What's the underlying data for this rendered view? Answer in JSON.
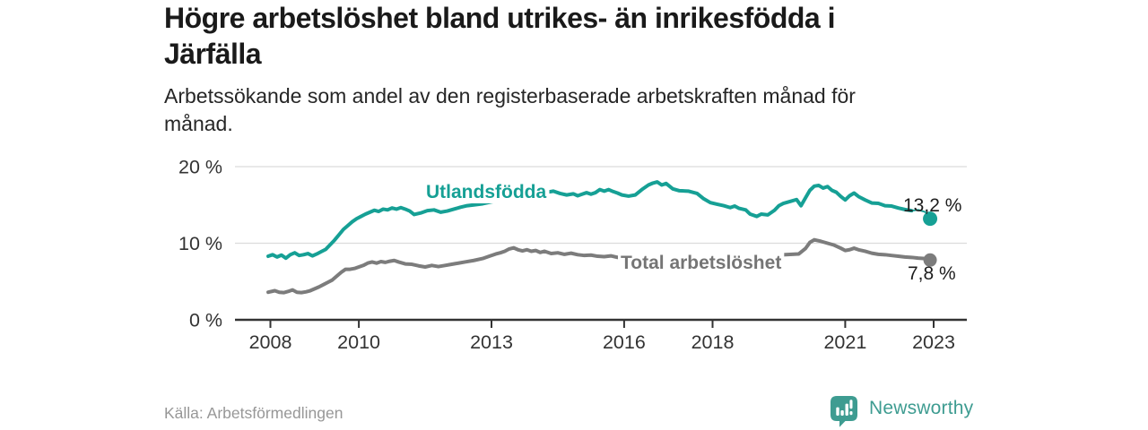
{
  "header": {
    "title_lines": [
      "Högre arbetslöshet bland utrikes- än inrikesfödda i",
      "Järfälla"
    ],
    "subtitle_lines": [
      "Arbetssökande som andel av den registerbaserade arbetskraften månad för",
      "månad."
    ]
  },
  "footer": {
    "source": "Källa: Arbetsförmedlingen",
    "brand": "Newsworthy",
    "logo_icon": "speech-bubble-bar-chart-icon"
  },
  "colors": {
    "accent_teal": "#16a095",
    "line_gray": "#7c7c7c",
    "label_gray": "#757575",
    "grid": "#dcdcdc",
    "axis": "#333333",
    "tick_text": "#333333",
    "value_text": "#1d1d1d",
    "brand_teal": "#3e9c91",
    "background": "#ffffff"
  },
  "chart_data": {
    "type": "line",
    "title": "Högre arbetslöshet bland utrikes- än inrikesfödda i Järfälla",
    "subtitle": "Arbetssökande som andel av den registerbaserade arbetskraften månad för månad.",
    "xlabel": "",
    "ylabel": "",
    "grid": "horizontal",
    "legend_position": "inline-labels",
    "ylim": [
      0,
      21.5
    ],
    "x_range": [
      2007.95,
      2023.2
    ],
    "x_axis": {
      "ticks": [
        {
          "year": 2008,
          "label": "2008"
        },
        {
          "year": 2010,
          "label": "2010"
        },
        {
          "year": 2013,
          "label": "2013"
        },
        {
          "year": 2016,
          "label": "2016"
        },
        {
          "year": 2018,
          "label": "2018"
        },
        {
          "year": 2021,
          "label": "2021"
        },
        {
          "year": 2023,
          "label": "2023"
        }
      ]
    },
    "y_axis": {
      "ticks": [
        {
          "value": 0,
          "label": "0 %"
        },
        {
          "value": 10,
          "label": "10 %"
        },
        {
          "value": 20,
          "label": "20 %"
        }
      ]
    },
    "series": [
      {
        "name": "Utlandsfödda",
        "color": "#16a095",
        "end_label": "13,2 %",
        "end_value": 13.2,
        "points": [
          [
            2007.95,
            8.3
          ],
          [
            2008.05,
            8.5
          ],
          [
            2008.15,
            8.2
          ],
          [
            2008.25,
            8.45
          ],
          [
            2008.35,
            8.05
          ],
          [
            2008.45,
            8.5
          ],
          [
            2008.55,
            8.75
          ],
          [
            2008.65,
            8.4
          ],
          [
            2008.75,
            8.5
          ],
          [
            2008.85,
            8.65
          ],
          [
            2008.95,
            8.35
          ],
          [
            2009.05,
            8.6
          ],
          [
            2009.15,
            8.9
          ],
          [
            2009.25,
            9.2
          ],
          [
            2009.35,
            9.8
          ],
          [
            2009.45,
            10.4
          ],
          [
            2009.55,
            11.1
          ],
          [
            2009.65,
            11.8
          ],
          [
            2009.75,
            12.3
          ],
          [
            2009.85,
            12.8
          ],
          [
            2009.95,
            13.2
          ],
          [
            2010.05,
            13.5
          ],
          [
            2010.15,
            13.8
          ],
          [
            2010.25,
            14.05
          ],
          [
            2010.35,
            14.3
          ],
          [
            2010.45,
            14.15
          ],
          [
            2010.55,
            14.45
          ],
          [
            2010.65,
            14.35
          ],
          [
            2010.75,
            14.6
          ],
          [
            2010.85,
            14.45
          ],
          [
            2010.95,
            14.65
          ],
          [
            2011.05,
            14.45
          ],
          [
            2011.15,
            14.2
          ],
          [
            2011.25,
            13.75
          ],
          [
            2011.4,
            13.95
          ],
          [
            2011.55,
            14.25
          ],
          [
            2011.7,
            14.35
          ],
          [
            2011.85,
            14.05
          ],
          [
            2012.0,
            14.2
          ],
          [
            2012.15,
            14.45
          ],
          [
            2012.3,
            14.7
          ],
          [
            2012.45,
            14.9
          ],
          [
            2012.6,
            15.0
          ],
          [
            2012.8,
            15.15
          ],
          [
            2013.0,
            15.4
          ],
          [
            2013.25,
            15.6
          ],
          [
            2013.5,
            15.85
          ],
          [
            2013.75,
            16.1
          ],
          [
            2014.0,
            16.4
          ],
          [
            2014.2,
            16.6
          ],
          [
            2014.4,
            16.8
          ],
          [
            2014.55,
            16.5
          ],
          [
            2014.7,
            16.3
          ],
          [
            2014.85,
            16.45
          ],
          [
            2014.95,
            16.2
          ],
          [
            2015.05,
            16.4
          ],
          [
            2015.15,
            16.6
          ],
          [
            2015.25,
            16.4
          ],
          [
            2015.35,
            16.6
          ],
          [
            2015.45,
            17.0
          ],
          [
            2015.55,
            16.8
          ],
          [
            2015.65,
            17.0
          ],
          [
            2015.75,
            16.75
          ],
          [
            2015.85,
            16.55
          ],
          [
            2015.95,
            16.3
          ],
          [
            2016.1,
            16.15
          ],
          [
            2016.25,
            16.3
          ],
          [
            2016.4,
            17.0
          ],
          [
            2016.55,
            17.6
          ],
          [
            2016.65,
            17.85
          ],
          [
            2016.75,
            18.0
          ],
          [
            2016.85,
            17.6
          ],
          [
            2016.95,
            17.8
          ],
          [
            2017.1,
            17.1
          ],
          [
            2017.25,
            16.85
          ],
          [
            2017.45,
            16.8
          ],
          [
            2017.65,
            16.5
          ],
          [
            2017.8,
            15.8
          ],
          [
            2017.95,
            15.3
          ],
          [
            2018.1,
            15.1
          ],
          [
            2018.25,
            14.9
          ],
          [
            2018.4,
            14.65
          ],
          [
            2018.5,
            14.85
          ],
          [
            2018.6,
            14.55
          ],
          [
            2018.75,
            14.35
          ],
          [
            2018.85,
            13.8
          ],
          [
            2019.0,
            13.5
          ],
          [
            2019.1,
            13.8
          ],
          [
            2019.25,
            13.7
          ],
          [
            2019.4,
            14.3
          ],
          [
            2019.5,
            14.9
          ],
          [
            2019.6,
            15.2
          ],
          [
            2019.75,
            15.45
          ],
          [
            2019.9,
            15.7
          ],
          [
            2020.0,
            14.9
          ],
          [
            2020.1,
            15.9
          ],
          [
            2020.2,
            16.9
          ],
          [
            2020.3,
            17.45
          ],
          [
            2020.4,
            17.55
          ],
          [
            2020.5,
            17.2
          ],
          [
            2020.6,
            17.4
          ],
          [
            2020.7,
            16.9
          ],
          [
            2020.8,
            16.65
          ],
          [
            2020.9,
            16.1
          ],
          [
            2021.0,
            15.65
          ],
          [
            2021.1,
            16.2
          ],
          [
            2021.2,
            16.55
          ],
          [
            2021.3,
            16.1
          ],
          [
            2021.45,
            15.65
          ],
          [
            2021.6,
            15.25
          ],
          [
            2021.75,
            15.2
          ],
          [
            2021.9,
            14.9
          ],
          [
            2022.05,
            14.85
          ],
          [
            2022.2,
            14.6
          ],
          [
            2022.35,
            14.4
          ],
          [
            2022.5,
            14.25
          ],
          [
            2022.65,
            14.35
          ],
          [
            2022.8,
            14.1
          ],
          [
            2022.92,
            13.6
          ]
        ]
      },
      {
        "name": "Total arbetslöshet",
        "color": "#7c7c7c",
        "end_label": "7,8 %",
        "end_value": 7.8,
        "points": [
          [
            2007.95,
            3.6
          ],
          [
            2008.1,
            3.8
          ],
          [
            2008.2,
            3.6
          ],
          [
            2008.3,
            3.55
          ],
          [
            2008.4,
            3.7
          ],
          [
            2008.5,
            3.9
          ],
          [
            2008.6,
            3.6
          ],
          [
            2008.7,
            3.55
          ],
          [
            2008.8,
            3.65
          ],
          [
            2008.9,
            3.8
          ],
          [
            2009.0,
            4.05
          ],
          [
            2009.1,
            4.3
          ],
          [
            2009.2,
            4.6
          ],
          [
            2009.3,
            4.9
          ],
          [
            2009.4,
            5.2
          ],
          [
            2009.5,
            5.7
          ],
          [
            2009.6,
            6.2
          ],
          [
            2009.7,
            6.6
          ],
          [
            2009.8,
            6.6
          ],
          [
            2009.9,
            6.7
          ],
          [
            2010.0,
            6.9
          ],
          [
            2010.1,
            7.1
          ],
          [
            2010.2,
            7.4
          ],
          [
            2010.3,
            7.55
          ],
          [
            2010.4,
            7.4
          ],
          [
            2010.5,
            7.6
          ],
          [
            2010.6,
            7.5
          ],
          [
            2010.7,
            7.65
          ],
          [
            2010.8,
            7.75
          ],
          [
            2010.9,
            7.55
          ],
          [
            2011.05,
            7.3
          ],
          [
            2011.2,
            7.25
          ],
          [
            2011.35,
            7.05
          ],
          [
            2011.5,
            6.9
          ],
          [
            2011.65,
            7.1
          ],
          [
            2011.8,
            6.95
          ],
          [
            2011.95,
            7.1
          ],
          [
            2012.1,
            7.25
          ],
          [
            2012.25,
            7.4
          ],
          [
            2012.4,
            7.55
          ],
          [
            2012.6,
            7.75
          ],
          [
            2012.8,
            8.0
          ],
          [
            2012.95,
            8.3
          ],
          [
            2013.1,
            8.6
          ],
          [
            2013.2,
            8.75
          ],
          [
            2013.3,
            8.95
          ],
          [
            2013.4,
            9.25
          ],
          [
            2013.5,
            9.4
          ],
          [
            2013.6,
            9.15
          ],
          [
            2013.7,
            9.0
          ],
          [
            2013.8,
            9.15
          ],
          [
            2013.9,
            8.95
          ],
          [
            2014.0,
            9.05
          ],
          [
            2014.1,
            8.8
          ],
          [
            2014.2,
            8.95
          ],
          [
            2014.35,
            8.65
          ],
          [
            2014.5,
            8.75
          ],
          [
            2014.65,
            8.55
          ],
          [
            2014.8,
            8.7
          ],
          [
            2014.95,
            8.5
          ],
          [
            2015.1,
            8.4
          ],
          [
            2015.25,
            8.45
          ],
          [
            2015.4,
            8.3
          ],
          [
            2015.55,
            8.25
          ],
          [
            2015.7,
            8.35
          ],
          [
            2015.85,
            8.15
          ],
          [
            2016.0,
            8.3
          ],
          [
            2016.2,
            8.45
          ],
          [
            2016.4,
            8.3
          ],
          [
            2016.6,
            8.45
          ],
          [
            2016.8,
            8.3
          ],
          [
            2017.0,
            8.45
          ],
          [
            2017.2,
            8.3
          ],
          [
            2017.4,
            8.2
          ],
          [
            2017.6,
            8.3
          ],
          [
            2017.8,
            8.15
          ],
          [
            2018.0,
            8.25
          ],
          [
            2018.2,
            8.1
          ],
          [
            2018.4,
            8.2
          ],
          [
            2018.6,
            8.05
          ],
          [
            2018.8,
            8.15
          ],
          [
            2019.0,
            8.25
          ],
          [
            2019.2,
            8.3
          ],
          [
            2019.4,
            8.4
          ],
          [
            2019.6,
            8.5
          ],
          [
            2019.8,
            8.55
          ],
          [
            2019.95,
            8.6
          ],
          [
            2020.1,
            9.3
          ],
          [
            2020.2,
            10.1
          ],
          [
            2020.3,
            10.45
          ],
          [
            2020.45,
            10.25
          ],
          [
            2020.6,
            10.0
          ],
          [
            2020.75,
            9.75
          ],
          [
            2020.9,
            9.35
          ],
          [
            2021.0,
            9.05
          ],
          [
            2021.1,
            9.15
          ],
          [
            2021.2,
            9.35
          ],
          [
            2021.3,
            9.15
          ],
          [
            2021.45,
            8.95
          ],
          [
            2021.6,
            8.7
          ],
          [
            2021.75,
            8.55
          ],
          [
            2021.9,
            8.5
          ],
          [
            2022.05,
            8.4
          ],
          [
            2022.2,
            8.3
          ],
          [
            2022.35,
            8.2
          ],
          [
            2022.5,
            8.15
          ],
          [
            2022.65,
            8.05
          ],
          [
            2022.8,
            8.0
          ],
          [
            2022.88,
            7.9
          ]
        ]
      }
    ]
  }
}
